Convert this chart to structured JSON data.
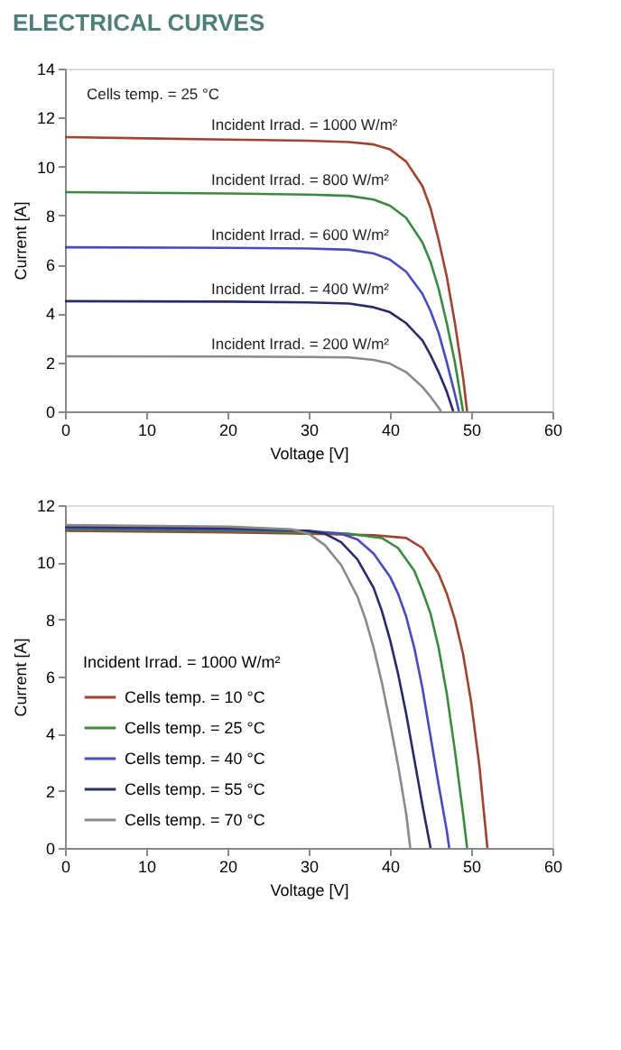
{
  "chart_data": [
    {
      "type": "line",
      "title": "ELECTRICAL CURVES",
      "xlabel": "Voltage [V]",
      "ylabel": "Current [A]",
      "annotations": [
        "Cells temp. = 25 °C"
      ],
      "xlim": [
        0,
        60
      ],
      "xticks": [
        0,
        10,
        20,
        30,
        40,
        50,
        60
      ],
      "ylim": [
        0,
        14
      ],
      "yticks": [
        0,
        2,
        4,
        6,
        8,
        10,
        12,
        14
      ],
      "grid": false,
      "legend": false,
      "series": [
        {
          "name": "Incident Irrad. = 1000 W/m²",
          "color": "#a0432f",
          "x": [
            0,
            10,
            20,
            30,
            35,
            38,
            40,
            42,
            44,
            45,
            46,
            47,
            48,
            49,
            49.5
          ],
          "values": [
            11.2,
            11.15,
            11.1,
            11.05,
            11.0,
            10.9,
            10.7,
            10.2,
            9.2,
            8.3,
            7.0,
            5.5,
            3.6,
            1.4,
            0
          ]
        },
        {
          "name": "Incident Irrad. = 800 W/m²",
          "color": "#3a8a3f",
          "x": [
            0,
            20,
            30,
            35,
            38,
            40,
            42,
            44,
            45,
            46,
            47,
            48,
            49
          ],
          "values": [
            8.95,
            8.9,
            8.85,
            8.8,
            8.65,
            8.4,
            7.9,
            6.9,
            6.1,
            5.0,
            3.6,
            2.0,
            0
          ]
        },
        {
          "name": "Incident Irrad. = 600 W/m²",
          "color": "#4a4ac0",
          "x": [
            0,
            20,
            30,
            35,
            38,
            40,
            42,
            44,
            45,
            46,
            47,
            48,
            48.5
          ],
          "values": [
            6.7,
            6.68,
            6.65,
            6.6,
            6.45,
            6.2,
            5.7,
            4.8,
            4.1,
            3.2,
            2.0,
            0.7,
            0
          ]
        },
        {
          "name": "Incident Irrad. = 400 W/m²",
          "color": "#2a2a6a",
          "x": [
            0,
            20,
            30,
            35,
            38,
            40,
            42,
            44,
            45,
            46,
            47,
            47.8
          ],
          "values": [
            4.5,
            4.48,
            4.45,
            4.4,
            4.25,
            4.05,
            3.6,
            2.9,
            2.3,
            1.6,
            0.8,
            0
          ]
        },
        {
          "name": "Incident Irrad. = 200 W/m²",
          "color": "#8a8a8a",
          "x": [
            0,
            20,
            30,
            35,
            38,
            40,
            42,
            44,
            45,
            46,
            46.3
          ],
          "values": [
            2.25,
            2.24,
            2.22,
            2.2,
            2.1,
            1.95,
            1.6,
            1.0,
            0.6,
            0.15,
            0
          ]
        }
      ]
    },
    {
      "type": "line",
      "xlabel": "Voltage [V]",
      "ylabel": "Current [A]",
      "legend_title": "Incident Irrad. = 1000 W/m²",
      "xlim": [
        0,
        60
      ],
      "xticks": [
        0,
        10,
        20,
        30,
        40,
        50,
        60
      ],
      "ylim": [
        0,
        12
      ],
      "yticks": [
        0,
        2,
        4,
        6,
        8,
        10,
        12
      ],
      "grid": false,
      "legend": "bottom left",
      "series": [
        {
          "name": "Cells temp. = 10 °C",
          "color": "#a0432f",
          "x": [
            0,
            20,
            30,
            38,
            42,
            44,
            46,
            47,
            48,
            49,
            50,
            51,
            52
          ],
          "values": [
            11.1,
            11.05,
            11.0,
            10.95,
            10.85,
            10.5,
            9.6,
            8.9,
            8.0,
            6.8,
            5.1,
            2.9,
            0
          ]
        },
        {
          "name": "Cells temp. = 25 °C",
          "color": "#3a8a3f",
          "x": [
            0,
            20,
            30,
            35,
            39,
            41,
            43,
            44,
            45,
            46,
            47,
            48,
            49,
            49.5
          ],
          "values": [
            11.15,
            11.1,
            11.05,
            11.0,
            10.85,
            10.5,
            9.7,
            9.0,
            8.2,
            7.0,
            5.4,
            3.4,
            1.2,
            0
          ]
        },
        {
          "name": "Cells temp. = 40 °C",
          "color": "#4a4ac0",
          "x": [
            0,
            20,
            30,
            34,
            36,
            38,
            40,
            41,
            42,
            43,
            44,
            45,
            46,
            47,
            47.3
          ],
          "values": [
            11.2,
            11.15,
            11.1,
            11.0,
            10.8,
            10.3,
            9.5,
            8.9,
            8.1,
            7.0,
            5.6,
            3.9,
            2.2,
            0.6,
            0
          ]
        },
        {
          "name": "Cells temp. = 55 °C",
          "color": "#2a2a6a",
          "x": [
            0,
            20,
            30,
            32,
            34,
            36,
            38,
            39,
            40,
            41,
            42,
            43,
            44,
            45
          ],
          "values": [
            11.25,
            11.2,
            11.1,
            11.0,
            10.7,
            10.1,
            9.1,
            8.3,
            7.3,
            6.1,
            4.7,
            3.1,
            1.5,
            0
          ]
        },
        {
          "name": "Cells temp. = 70 °C",
          "color": "#8a8a8a",
          "x": [
            0,
            20,
            28,
            30,
            32,
            34,
            36,
            37,
            38,
            39,
            40,
            41,
            42,
            42.5
          ],
          "values": [
            11.3,
            11.25,
            11.15,
            11.0,
            10.6,
            9.9,
            8.8,
            8.0,
            7.0,
            5.8,
            4.4,
            2.9,
            1.2,
            0
          ]
        }
      ]
    }
  ]
}
